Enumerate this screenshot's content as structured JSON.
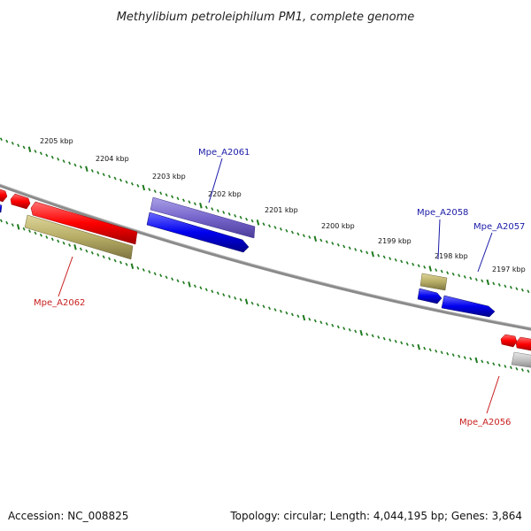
{
  "title": "Methylibium petroleiphilum PM1, complete genome",
  "footer": {
    "accession": "Accession: NC_008825",
    "summary": "Topology: circular; Length: 4,044,195 bp; Genes: 3,864"
  },
  "colors": {
    "backbone": "#808080",
    "ruler": "#1e7a1e",
    "forward_label": "#1a1aa8",
    "reverse_label": "#c81e1e",
    "red": "#ff0000",
    "blue": "#0000ee",
    "lavender": "#7766cc",
    "olive": "#b7ad66",
    "gray": "#c0c0c0"
  },
  "kbp_labels": [
    "2205 kbp",
    "2204 kbp",
    "2203 kbp",
    "2202 kbp",
    "2201 kbp",
    "2200 kbp",
    "2199 kbp",
    "2198 kbp",
    "2197 kbp"
  ],
  "gene_labels": [
    {
      "id": "Mpe_A2061",
      "strand": "forward"
    },
    {
      "id": "Mpe_A2058",
      "strand": "forward"
    },
    {
      "id": "Mpe_A2057",
      "strand": "forward"
    },
    {
      "id": "Mpe_A2062",
      "strand": "reverse"
    },
    {
      "id": "Mpe_A2056",
      "strand": "reverse"
    }
  ]
}
